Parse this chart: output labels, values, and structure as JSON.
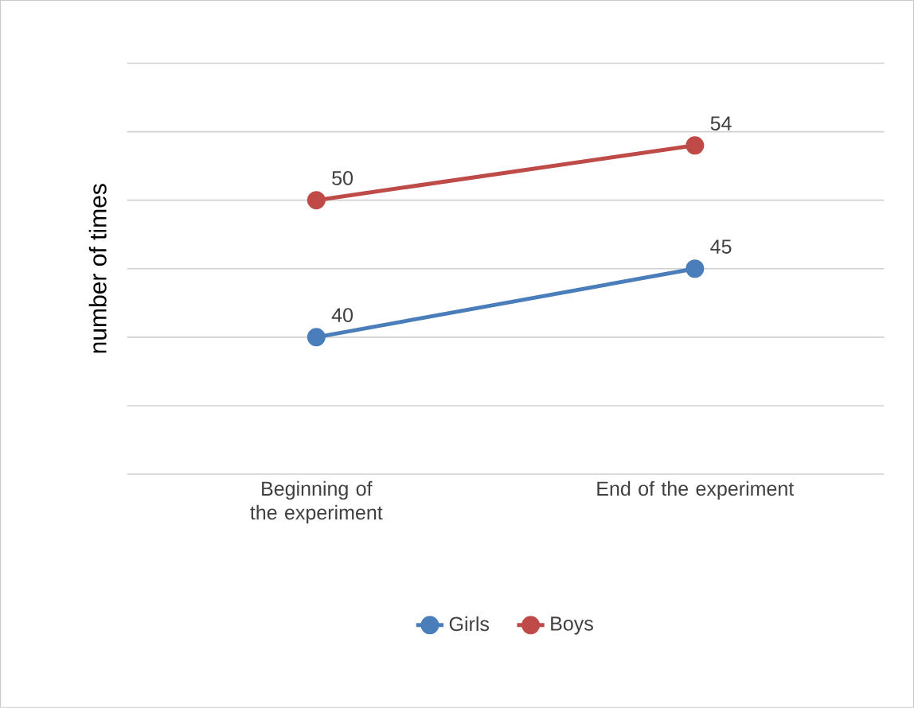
{
  "chart_data": {
    "type": "line",
    "ylabel": "number of times",
    "categories": [
      "Beginning of the experiment",
      "End of the experiment"
    ],
    "series": [
      {
        "name": "Girls",
        "color": "#4a7ebb",
        "values": [
          40,
          45
        ]
      },
      {
        "name": "Boys",
        "color": "#be4b48",
        "values": [
          50,
          54
        ]
      }
    ],
    "ylim": [
      30,
      60
    ],
    "yticks": [
      30,
      35,
      40,
      45,
      50,
      55,
      60
    ],
    "tick_labels": "x",
    "grid": "y",
    "legend": "bottom",
    "marker": "circle",
    "line_style": "solid",
    "data_labels": true
  }
}
